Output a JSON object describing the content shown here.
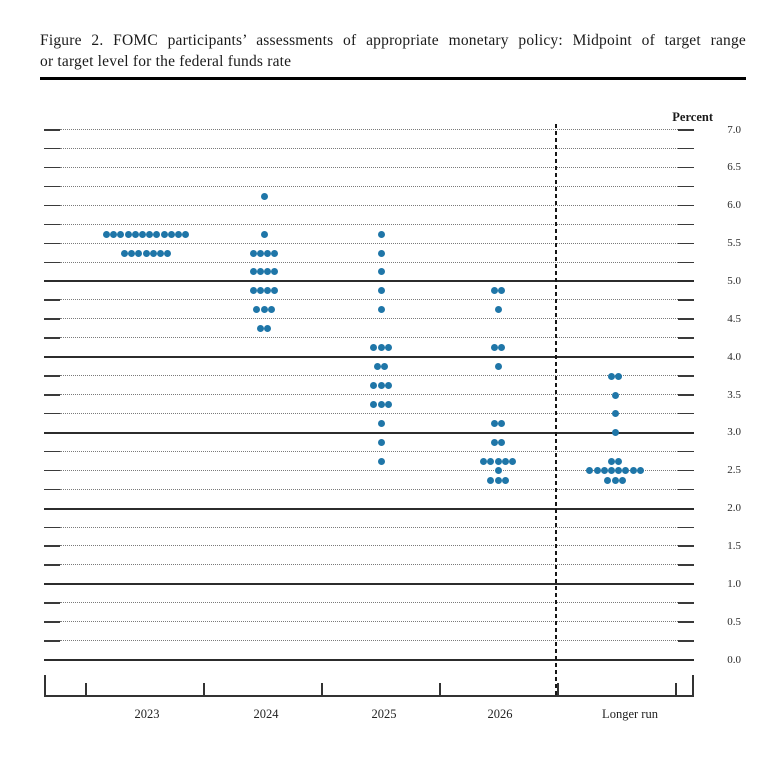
{
  "figure": {
    "title_line1": "Figure 2.  FOMC participants’ assessments of appropriate monetary policy:  Midpoint of target range",
    "title_line2": "or target level for the federal funds rate"
  },
  "chart_data": {
    "type": "scatter",
    "subtype": "fomc-dot-plot",
    "title": "FOMC participants' assessments of appropriate monetary policy: Midpoint of target range or target level for the federal funds rate",
    "unit_label": "Percent",
    "ylim": [
      0.0,
      7.0
    ],
    "y_label_step": 0.5,
    "gridline_step": 0.25,
    "solid_gridlines": [
      0,
      1,
      2,
      3,
      4,
      5
    ],
    "y_tick_labels": [
      "7.0",
      "6.5",
      "6.0",
      "5.5",
      "5.0",
      "4.5",
      "4.0",
      "3.5",
      "3.0",
      "2.5",
      "2.0",
      "1.5",
      "1.0",
      "0.5",
      "0.0"
    ],
    "dot_color": "#1f76a8",
    "legend_position": "none",
    "grid": "dotted-quarter-point",
    "columns": [
      {
        "label": "2023",
        "dots": [
          {
            "rate": 5.625,
            "count": 12
          },
          {
            "rate": 5.375,
            "count": 7
          }
        ]
      },
      {
        "label": "2024",
        "dots": [
          {
            "rate": 6.125,
            "count": 1
          },
          {
            "rate": 5.625,
            "count": 1
          },
          {
            "rate": 5.375,
            "count": 4
          },
          {
            "rate": 5.125,
            "count": 4
          },
          {
            "rate": 4.875,
            "count": 4
          },
          {
            "rate": 4.625,
            "count": 3
          },
          {
            "rate": 4.375,
            "count": 2
          }
        ]
      },
      {
        "label": "2025",
        "dots": [
          {
            "rate": 5.625,
            "count": 1
          },
          {
            "rate": 5.375,
            "count": 1
          },
          {
            "rate": 5.125,
            "count": 1
          },
          {
            "rate": 4.875,
            "count": 1
          },
          {
            "rate": 4.625,
            "count": 1
          },
          {
            "rate": 4.125,
            "count": 3
          },
          {
            "rate": 3.875,
            "count": 2
          },
          {
            "rate": 3.625,
            "count": 3
          },
          {
            "rate": 3.375,
            "count": 3
          },
          {
            "rate": 3.125,
            "count": 1
          },
          {
            "rate": 2.875,
            "count": 1
          },
          {
            "rate": 2.625,
            "count": 1
          }
        ]
      },
      {
        "label": "2026",
        "dots": [
          {
            "rate": 4.875,
            "count": 2
          },
          {
            "rate": 4.625,
            "count": 1
          },
          {
            "rate": 4.125,
            "count": 2
          },
          {
            "rate": 3.875,
            "count": 1
          },
          {
            "rate": 3.125,
            "count": 2
          },
          {
            "rate": 2.875,
            "count": 2
          },
          {
            "rate": 2.625,
            "count": 5
          },
          {
            "rate": 2.5,
            "count": 1
          },
          {
            "rate": 2.375,
            "count": 3
          }
        ]
      },
      {
        "label": "Longer run",
        "dots": [
          {
            "rate": 3.75,
            "count": 2
          },
          {
            "rate": 3.5,
            "count": 1
          },
          {
            "rate": 3.25,
            "count": 1
          },
          {
            "rate": 3.0,
            "count": 1
          },
          {
            "rate": 2.625,
            "count": 2
          },
          {
            "rate": 2.5,
            "count": 8
          },
          {
            "rate": 2.375,
            "count": 3
          }
        ]
      }
    ],
    "separator_before_column": "Longer run"
  }
}
